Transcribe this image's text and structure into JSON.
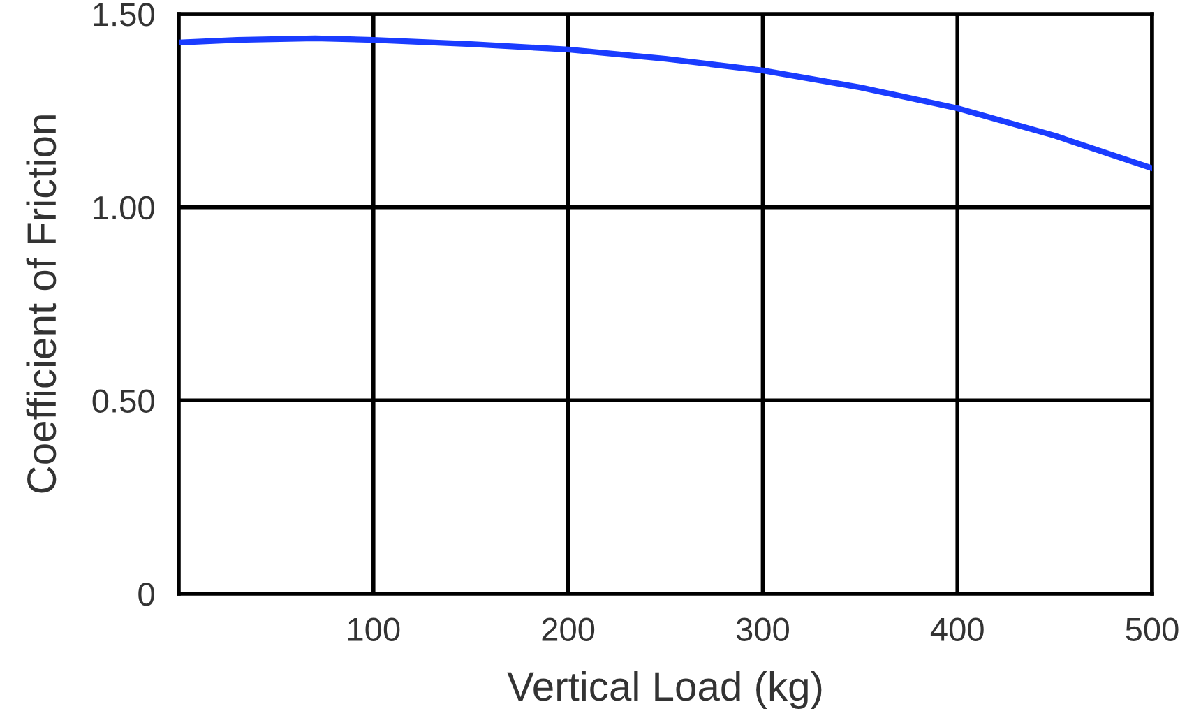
{
  "chart_data": {
    "type": "line",
    "xlabel": "Vertical Load (kg)",
    "ylabel": "Coefficient of Friction",
    "x": [
      0,
      30,
      70,
      100,
      150,
      200,
      250,
      300,
      350,
      400,
      450,
      500
    ],
    "series": [
      {
        "color": "#1a3cff",
        "values": [
          1.426,
          1.433,
          1.437,
          1.433,
          1.422,
          1.408,
          1.384,
          1.354,
          1.31,
          1.256,
          1.185,
          1.101
        ]
      }
    ],
    "xlim": [
      0,
      500
    ],
    "ylim": [
      0,
      1.5
    ],
    "xticks": [
      100,
      200,
      300,
      400,
      500
    ],
    "yticks": [
      {
        "value": 0,
        "label": "0"
      },
      {
        "value": 0.5,
        "label": "0.50"
      },
      {
        "value": 1.0,
        "label": "1.00"
      },
      {
        "value": 1.5,
        "label": "1.50"
      }
    ],
    "grid": true,
    "marker": "none",
    "line_style": "solid"
  }
}
